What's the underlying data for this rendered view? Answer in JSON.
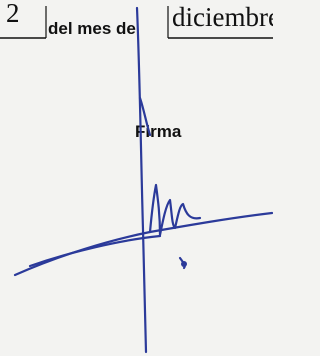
{
  "form": {
    "day": "2",
    "connector": "del mes de",
    "month": "diciembre",
    "signature_label": "Firma"
  }
}
